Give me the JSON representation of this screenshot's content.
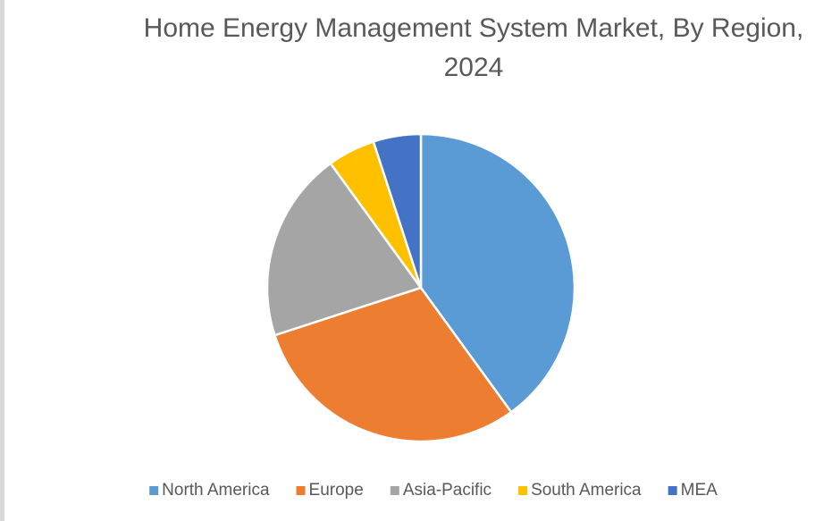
{
  "chart_data": {
    "type": "pie",
    "title": "Home Energy Management System Market, By Region, 2024",
    "categories": [
      "North America",
      "Europe",
      "Asia-Pacific",
      "South America",
      "MEA"
    ],
    "values": [
      40,
      30,
      20,
      5,
      5
    ],
    "colors": [
      "#5b9bd5",
      "#ed7d31",
      "#a5a5a5",
      "#ffc000",
      "#4472c4"
    ],
    "legend": "bottom"
  }
}
